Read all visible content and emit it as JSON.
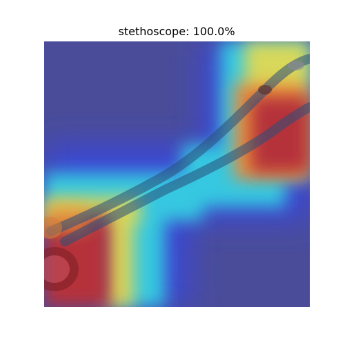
{
  "figure": {
    "predicted_class": "stethoscope",
    "confidence": "100.0%",
    "title": "stethoscope: 100.0%"
  },
  "image": {
    "subject": "stethoscope",
    "overlay": "saliency-heatmap",
    "colormap": "jet"
  },
  "colors": {
    "cold": "#4a4c9a",
    "blue": "#3a46d6",
    "cyan": "#35c8e0",
    "yellow": "#d8d85a",
    "orange": "#e8903a",
    "red": "#b5303a",
    "tube": "#2a4f7a"
  }
}
